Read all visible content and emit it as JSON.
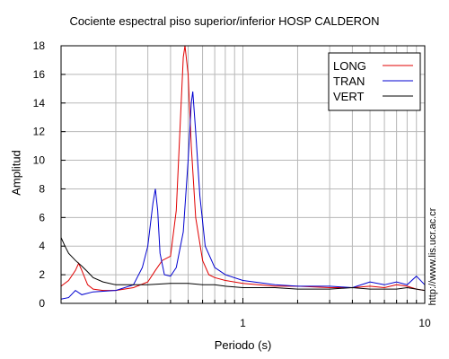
{
  "chart_data": {
    "type": "line",
    "title": "Cociente espectral piso superior/inferior  HOSP CALDERON",
    "xlabel": "Periodo (s)",
    "ylabel": "Amplitud",
    "x_scale": "log",
    "xlim": [
      0.1,
      10
    ],
    "ylim": [
      0,
      18
    ],
    "xticks": [
      {
        "value": 1,
        "label": "1"
      },
      {
        "value": 10,
        "label": "10"
      }
    ],
    "yticks": [
      0,
      2,
      4,
      6,
      8,
      10,
      12,
      14,
      16,
      18
    ],
    "grid": true,
    "legend_position": "top-right",
    "series": [
      {
        "name": "LONG",
        "color": "#e00000",
        "points": [
          [
            0.1,
            1.2
          ],
          [
            0.11,
            1.6
          ],
          [
            0.12,
            2.3
          ],
          [
            0.125,
            2.8
          ],
          [
            0.13,
            2.3
          ],
          [
            0.14,
            1.3
          ],
          [
            0.15,
            1.0
          ],
          [
            0.17,
            0.9
          ],
          [
            0.2,
            0.9
          ],
          [
            0.25,
            1.1
          ],
          [
            0.3,
            1.5
          ],
          [
            0.33,
            2.3
          ],
          [
            0.36,
            3.0
          ],
          [
            0.4,
            3.3
          ],
          [
            0.43,
            6.5
          ],
          [
            0.45,
            12.0
          ],
          [
            0.47,
            17.2
          ],
          [
            0.48,
            18.0
          ],
          [
            0.5,
            16.0
          ],
          [
            0.52,
            11.0
          ],
          [
            0.55,
            6.0
          ],
          [
            0.6,
            3.0
          ],
          [
            0.65,
            2.0
          ],
          [
            0.7,
            1.8
          ],
          [
            0.8,
            1.6
          ],
          [
            1.0,
            1.4
          ],
          [
            1.5,
            1.2
          ],
          [
            2.0,
            1.2
          ],
          [
            3.0,
            1.1
          ],
          [
            4.0,
            1.1
          ],
          [
            5.0,
            1.2
          ],
          [
            6.0,
            1.1
          ],
          [
            7.0,
            1.3
          ],
          [
            8.0,
            1.2
          ],
          [
            9.0,
            1.0
          ],
          [
            10.0,
            0.9
          ]
        ]
      },
      {
        "name": "TRAN",
        "color": "#0000d0",
        "points": [
          [
            0.1,
            0.3
          ],
          [
            0.11,
            0.4
          ],
          [
            0.12,
            0.9
          ],
          [
            0.13,
            0.6
          ],
          [
            0.15,
            0.8
          ],
          [
            0.2,
            0.9
          ],
          [
            0.25,
            1.3
          ],
          [
            0.28,
            2.5
          ],
          [
            0.3,
            4.0
          ],
          [
            0.32,
            7.0
          ],
          [
            0.33,
            8.0
          ],
          [
            0.34,
            6.5
          ],
          [
            0.35,
            3.5
          ],
          [
            0.37,
            2.0
          ],
          [
            0.4,
            1.9
          ],
          [
            0.43,
            2.5
          ],
          [
            0.47,
            5.0
          ],
          [
            0.5,
            10.0
          ],
          [
            0.52,
            14.0
          ],
          [
            0.53,
            14.8
          ],
          [
            0.55,
            12.0
          ],
          [
            0.58,
            7.5
          ],
          [
            0.62,
            4.0
          ],
          [
            0.7,
            2.5
          ],
          [
            0.8,
            2.0
          ],
          [
            1.0,
            1.6
          ],
          [
            1.5,
            1.3
          ],
          [
            2.0,
            1.2
          ],
          [
            3.0,
            1.2
          ],
          [
            4.0,
            1.1
          ],
          [
            5.0,
            1.5
          ],
          [
            6.0,
            1.3
          ],
          [
            7.0,
            1.5
          ],
          [
            8.0,
            1.3
          ],
          [
            9.0,
            1.9
          ],
          [
            10.0,
            1.3
          ]
        ]
      },
      {
        "name": "VERT",
        "color": "#000000",
        "points": [
          [
            0.1,
            4.6
          ],
          [
            0.105,
            4.0
          ],
          [
            0.11,
            3.5
          ],
          [
            0.12,
            3.0
          ],
          [
            0.13,
            2.6
          ],
          [
            0.14,
            2.2
          ],
          [
            0.15,
            1.8
          ],
          [
            0.17,
            1.5
          ],
          [
            0.2,
            1.3
          ],
          [
            0.25,
            1.3
          ],
          [
            0.3,
            1.3
          ],
          [
            0.4,
            1.4
          ],
          [
            0.5,
            1.4
          ],
          [
            0.6,
            1.3
          ],
          [
            0.7,
            1.3
          ],
          [
            0.8,
            1.2
          ],
          [
            1.0,
            1.1
          ],
          [
            1.5,
            1.1
          ],
          [
            2.0,
            1.0
          ],
          [
            3.0,
            1.0
          ],
          [
            4.0,
            1.1
          ],
          [
            5.0,
            1.0
          ],
          [
            6.0,
            1.0
          ],
          [
            7.0,
            1.0
          ],
          [
            8.0,
            1.1
          ],
          [
            9.0,
            1.0
          ],
          [
            10.0,
            0.9
          ]
        ]
      }
    ]
  },
  "credit": "http://www.lis.ucr.ac.cr"
}
